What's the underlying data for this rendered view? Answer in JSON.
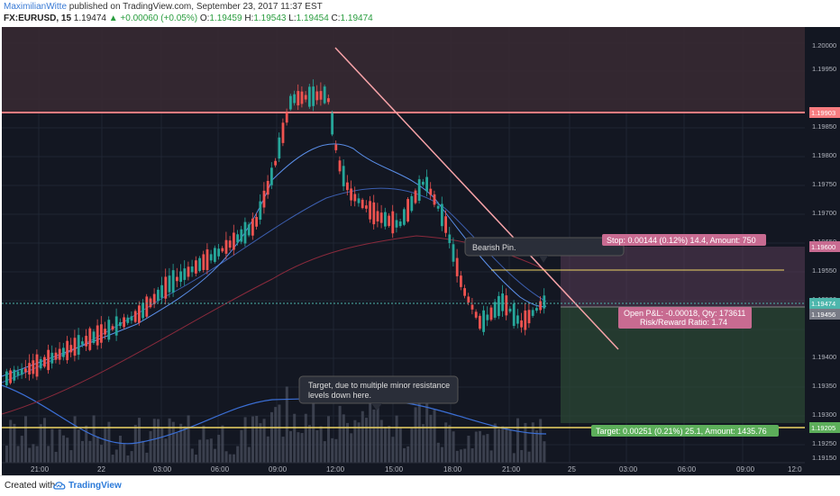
{
  "header": {
    "author": "MaximilianWitte",
    "published": "published on TradingView.com, September 23, 2017 11:37 EST",
    "symbol": "FX:EURUSD, 15",
    "price": "1.19474",
    "change": "+0.00060 (+0.05%)",
    "o_label": "O:",
    "o": "1.19459",
    "h_label": "H:",
    "h": "1.19543",
    "l_label": "L:",
    "l": "1.19454",
    "c_label": "C:",
    "c": "1.19474"
  },
  "price_axis": {
    "labels": [
      "1.20000",
      "1.19950",
      "1.19850",
      "1.19800",
      "1.19750",
      "1.19700",
      "1.19650",
      "1.19550",
      "1.19500",
      "1.19400",
      "1.19350",
      "1.19300",
      "1.19250",
      "1.19150"
    ],
    "badges": {
      "resistance": "1.19903",
      "stop": "1.19600",
      "current": "1.19474",
      "entry": "1.19456",
      "target": "1.19205"
    }
  },
  "time_axis": [
    "21:00",
    "22",
    "03:00",
    "06:00",
    "09:00",
    "12:00",
    "15:00",
    "18:00",
    "21:00",
    "25",
    "03:00",
    "06:00",
    "09:00",
    "12:0"
  ],
  "annotations": {
    "bearish": "Bearish Pin.",
    "target_note_1": "Target, due to multiple minor resistance",
    "target_note_2": "levels down here.",
    "stop_label": "Stop: 0.00144 (0.12%) 14.4, Amount: 750",
    "pnl_1": "Open P&L: -0.00018, Qty: 173611",
    "pnl_2": "Risk/Reward Ratio: 1.74",
    "target_label": "Target: 0.00251 (0.21%) 25.1, Amount: 1435.76"
  },
  "colors": {
    "background": "#131722",
    "up": "#26a69a",
    "down": "#ef5350",
    "resistance": "#f77c80",
    "trendline": "#f7a3a8",
    "target_line": "#f0d565"
  },
  "footer": {
    "created": "Created with",
    "brand": "TradingView",
    "logo_icon": "tradingview-cloud-icon"
  }
}
